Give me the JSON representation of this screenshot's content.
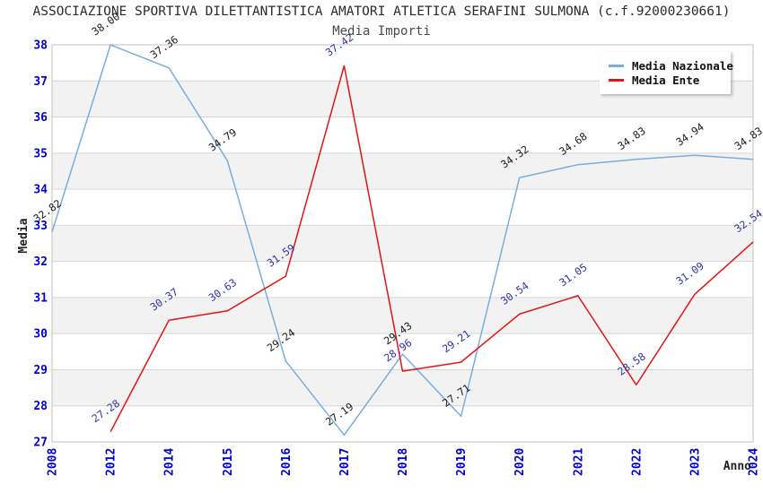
{
  "header": {
    "title": "ASSOCIAZIONE SPORTIVA DILETTANTISTICA AMATORI ATLETICA SERAFINI SULMONA (c.f.92000230661)"
  },
  "chart_data": {
    "type": "line",
    "title": "Media Importi",
    "xlabel": "Anno",
    "ylabel": "Media",
    "ylim": [
      27,
      38
    ],
    "yticks": [
      27,
      28,
      29,
      30,
      31,
      32,
      33,
      34,
      35,
      36,
      37,
      38
    ],
    "categories": [
      "2008",
      "2012",
      "2014",
      "2015",
      "2016",
      "2017",
      "2018",
      "2019",
      "2020",
      "2021",
      "2022",
      "2023",
      "2024"
    ],
    "series": [
      {
        "name": "Media Nazionale",
        "color": "#78ADE2",
        "label_color": "#1a1a1a",
        "values": [
          32.82,
          38.0,
          37.36,
          34.79,
          29.24,
          27.19,
          29.43,
          27.71,
          34.32,
          34.68,
          34.83,
          34.94,
          34.83
        ]
      },
      {
        "name": "Media Ente",
        "color": "#E51313",
        "label_color": "#3333AA",
        "values": [
          null,
          27.28,
          30.37,
          30.63,
          31.59,
          37.42,
          28.96,
          29.21,
          30.54,
          31.05,
          28.58,
          31.09,
          32.54
        ]
      }
    ],
    "legend_position": "top-right",
    "grid": "horizontal",
    "band_colors": [
      "#ffffff",
      "#f2f2f2"
    ],
    "gridline_color": "#d6d6d6",
    "border_color": "#c2c2c2",
    "axis_tick_color": "#0000CC",
    "axis_title_color": "#222222"
  },
  "legend": {
    "items": [
      {
        "label": "Media Nazionale"
      },
      {
        "label": "Media Ente"
      }
    ]
  }
}
